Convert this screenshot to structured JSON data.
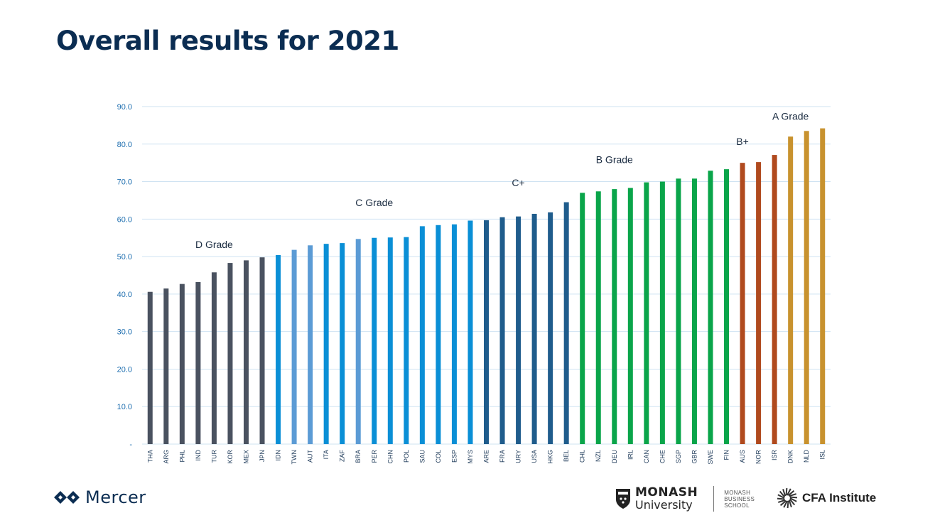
{
  "title": "Overall results for 2021",
  "chart_data": {
    "type": "bar",
    "categories": [
      "THA",
      "ARG",
      "PHL",
      "IND",
      "TUR",
      "KOR",
      "MEX",
      "JPN",
      "IDN",
      "TWN",
      "AUT",
      "ITA",
      "ZAF",
      "BRA",
      "PER",
      "CHN",
      "POL",
      "SAU",
      "COL",
      "ESP",
      "MYS",
      "ARE",
      "FRA",
      "URY",
      "USA",
      "HKG",
      "BEL",
      "CHL",
      "NZL",
      "DEU",
      "IRL",
      "CAN",
      "CHE",
      "SGP",
      "GBR",
      "SWE",
      "FIN",
      "AUS",
      "NOR",
      "ISR",
      "DNK",
      "NLD",
      "ISL"
    ],
    "values": [
      40.6,
      41.5,
      42.7,
      43.2,
      45.8,
      48.3,
      49.0,
      49.8,
      50.4,
      51.8,
      53.0,
      53.4,
      53.6,
      54.7,
      55.0,
      55.1,
      55.2,
      58.1,
      58.4,
      58.6,
      59.6,
      59.7,
      60.5,
      60.7,
      61.4,
      61.8,
      64.5,
      67.0,
      67.4,
      68.0,
      68.3,
      69.8,
      70.0,
      70.8,
      70.8,
      72.9,
      73.3,
      75.0,
      75.2,
      77.1,
      82.0,
      83.5,
      84.2
    ],
    "colors": [
      "#4a5260",
      "#4a5260",
      "#4a5260",
      "#4a5260",
      "#4a5260",
      "#4a5260",
      "#4a5260",
      "#4a5260",
      "#0a8fd6",
      "#5b9bd5",
      "#5b9bd5",
      "#0a8fd6",
      "#0a8fd6",
      "#5b9bd5",
      "#0a8fd6",
      "#0a8fd6",
      "#0a8fd6",
      "#0a8fd6",
      "#0a8fd6",
      "#0a8fd6",
      "#0a8fd6",
      "#1f5c8c",
      "#1f5c8c",
      "#1f5c8c",
      "#1f5c8c",
      "#1f5c8c",
      "#1f5c8c",
      "#0aa54a",
      "#0aa54a",
      "#0aa54a",
      "#0aa54a",
      "#0aa54a",
      "#0aa54a",
      "#0aa54a",
      "#0aa54a",
      "#0aa54a",
      "#0aa54a",
      "#b04a1e",
      "#b04a1e",
      "#b04a1e",
      "#c8922e",
      "#c8922e",
      "#c8922e"
    ],
    "ylim": [
      0,
      90
    ],
    "yticks": [
      0,
      10,
      20,
      30,
      40,
      50,
      60,
      70,
      80,
      90
    ],
    "ytick_labels": [
      "-",
      "10.0",
      "20.0",
      "30.0",
      "40.0",
      "50.0",
      "60.0",
      "70.0",
      "80.0",
      "90.0"
    ],
    "grid": true,
    "annotations": [
      {
        "text": "D Grade",
        "category": "TUR",
        "y": 52.3
      },
      {
        "text": "C Grade",
        "category": "PER",
        "y": 63.5
      },
      {
        "text": "C+",
        "category": "URY",
        "y": 68.8
      },
      {
        "text": "B Grade",
        "category": "DEU",
        "y": 74.9
      },
      {
        "text": "B+",
        "category": "AUS",
        "y": 79.8
      },
      {
        "text": "A Grade",
        "category": "DNK",
        "y": 86.5
      }
    ]
  },
  "footer": {
    "mercer": "Mercer",
    "monash_line1": "MONASH",
    "monash_line2": "University",
    "monash_school": [
      "MONASH",
      "BUSINESS",
      "SCHOOL"
    ],
    "cfa": "CFA Institute"
  }
}
